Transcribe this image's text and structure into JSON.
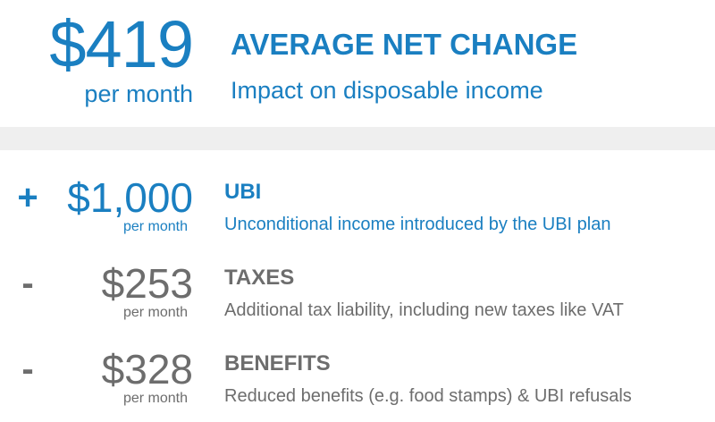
{
  "summary": {
    "amount": "$419",
    "unit": "per month",
    "title": "AVERAGE NET CHANGE",
    "subtitle": "Impact on disposable income"
  },
  "rows": [
    {
      "sign": "+",
      "amount": "$1,000",
      "unit": "per month",
      "label": "UBI",
      "description": "Unconditional income introduced by the UBI plan"
    },
    {
      "sign": "-",
      "amount": "$253",
      "unit": "per month",
      "label": "TAXES",
      "description": "Additional tax liability, including new taxes like VAT"
    },
    {
      "sign": "-",
      "amount": "$328",
      "unit": "per month",
      "label": "BENEFITS",
      "description": "Reduced benefits (e.g. food stamps) & UBI refusals"
    }
  ],
  "colors": {
    "accent": "#1a7fc1",
    "muted": "#6d6d6d",
    "band": "#efefef"
  }
}
